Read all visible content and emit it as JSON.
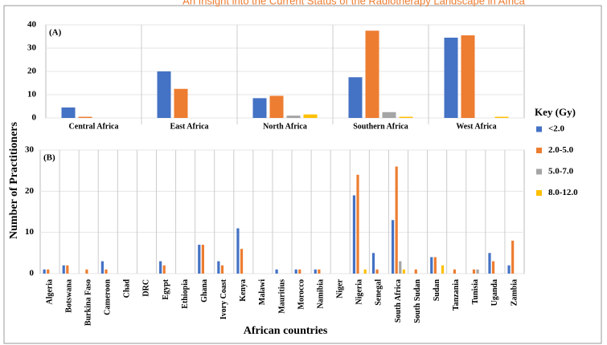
{
  "title": "An Insight into the Current Status of the Radiotherapy Landscape in Africa",
  "chart_data": [
    {
      "type": "bar",
      "panel_label": "(A)",
      "ylabel": "Number of Practitioners",
      "legend_title": "Key (Gy)",
      "categories": [
        "Central Africa",
        "East Africa",
        "North Africa",
        "Southern Africa",
        "West Africa"
      ],
      "series": [
        {
          "name": "<2.0",
          "color": "#4472c4",
          "values": [
            4.5,
            20,
            8.5,
            17.5,
            34.5
          ]
        },
        {
          "name": "2.0-5.0",
          "color": "#ed7d31",
          "values": [
            0.5,
            12.5,
            9.5,
            37.5,
            35.5
          ]
        },
        {
          "name": "5.0-7.0",
          "color": "#a5a5a5",
          "values": [
            0,
            0,
            1,
            2.5,
            0
          ]
        },
        {
          "name": "8.0-12.0",
          "color": "#ffc000",
          "values": [
            0,
            0,
            1.5,
            0.5,
            0.5
          ]
        }
      ],
      "ylim": [
        0,
        40
      ],
      "yticks": [
        0,
        10,
        20,
        30,
        40
      ],
      "grid": true
    },
    {
      "type": "bar",
      "panel_label": "(B)",
      "xlabel": "African countries",
      "categories": [
        "Algeria",
        "Botswana",
        "Burkina Faso",
        "Cameroon",
        "Chad",
        "DRC",
        "Egypt",
        "Ethiopia",
        "Ghana",
        "Ivory Coast",
        "Kenya",
        "Malawi",
        "Mauritius",
        "Morocco",
        "Namibia",
        "Niger",
        "Nigeria",
        "Senegal",
        "South Africa",
        "South Sudan",
        "Sudan",
        "Tanzania",
        "Tunisia",
        "Uganda",
        "Zambia"
      ],
      "series": [
        {
          "color": "#4472c4",
          "values": [
            1,
            2,
            0,
            3,
            0,
            0,
            3,
            0,
            7,
            3,
            11,
            0,
            1,
            1,
            1,
            0,
            19,
            5,
            13,
            0,
            4,
            0,
            0,
            5,
            2
          ]
        },
        {
          "color": "#ed7d31",
          "values": [
            1,
            2,
            1,
            1,
            0,
            0,
            2,
            0,
            7,
            2,
            6,
            0,
            0,
            1,
            1,
            0,
            24,
            1,
            26,
            1,
            4,
            1,
            1,
            3,
            8
          ]
        },
        {
          "color": "#a5a5a5",
          "values": [
            0,
            0,
            0,
            0,
            0,
            0,
            0,
            0,
            0,
            0,
            0,
            0,
            0,
            0,
            0,
            0,
            0,
            0,
            3,
            0,
            0,
            0,
            1,
            0,
            0
          ]
        },
        {
          "color": "#ffc000",
          "values": [
            0,
            0,
            0,
            0,
            0,
            0,
            0,
            0,
            0,
            0,
            0,
            0,
            0,
            0,
            0,
            0,
            1,
            0,
            1,
            0,
            2,
            0,
            0,
            0,
            0
          ]
        }
      ],
      "ylim": [
        0,
        30
      ],
      "yticks": [
        0,
        10,
        20,
        30
      ],
      "grid": true
    }
  ]
}
